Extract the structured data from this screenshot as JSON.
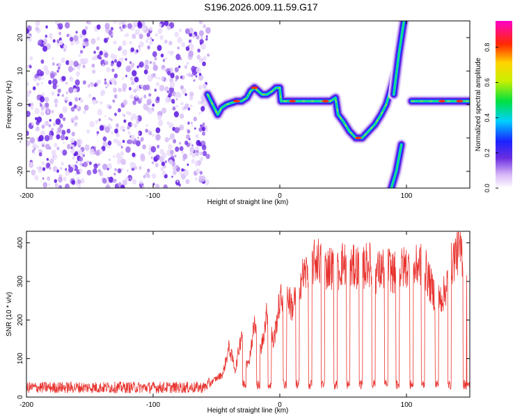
{
  "title": "S196.2026.009.11.59.G17",
  "colors": {
    "snr_line": "#e8322e",
    "frame": "#000000"
  },
  "chart_data": [
    {
      "type": "heatmap",
      "title": "S196.2026.009.11.59.G17",
      "xlabel": "Height of straight line (km)",
      "ylabel": "Frequency (Hz)",
      "xlim": [
        -200,
        150
      ],
      "ylim": [
        -25,
        25
      ],
      "xticks": [
        -200,
        -100,
        0,
        100
      ],
      "yticks": [
        -20,
        -10,
        0,
        10,
        20
      ],
      "colorbar": {
        "label": "Normalized spectral amplitude",
        "range": [
          0,
          0.95
        ],
        "ticks": [
          "0.0",
          "0.2",
          "0.4",
          "0.6",
          "0.8"
        ],
        "tick_values": [
          0.0,
          0.2,
          0.4,
          0.6,
          0.8
        ]
      },
      "noise_region_x": [
        -200,
        -56
      ],
      "ridge": [
        [
          -57,
          3
        ],
        [
          -53,
          0
        ],
        [
          -49,
          -3
        ],
        [
          -46,
          -1
        ],
        [
          -42,
          0
        ],
        [
          -38,
          0.5
        ],
        [
          -34,
          1
        ],
        [
          -30,
          1
        ],
        [
          -26,
          2
        ],
        [
          -23,
          4
        ],
        [
          -20,
          5
        ],
        [
          -17,
          4
        ],
        [
          -14,
          3
        ],
        [
          -10,
          3
        ],
        [
          -6,
          4
        ],
        [
          -3,
          5
        ],
        [
          0,
          5
        ],
        [
          1,
          1
        ],
        [
          10,
          1
        ],
        [
          20,
          1
        ],
        [
          30,
          1
        ],
        [
          40,
          1
        ],
        [
          44,
          2
        ],
        [
          46,
          -3
        ],
        [
          50,
          -5
        ],
        [
          55,
          -8
        ],
        [
          60,
          -10
        ],
        [
          65,
          -10
        ],
        [
          70,
          -8
        ],
        [
          75,
          -6
        ],
        [
          80,
          -3
        ],
        [
          84,
          0
        ],
        [
          88,
          5
        ],
        [
          91,
          9
        ]
      ],
      "steep_segment_upper": [
        [
          90,
          3
        ],
        [
          94,
          15
        ],
        [
          98,
          25
        ]
      ],
      "steep_segment_lower": [
        [
          88,
          -25
        ],
        [
          92,
          -20
        ],
        [
          96,
          -12
        ]
      ],
      "tail_ridge": [
        [
          104,
          1
        ],
        [
          115,
          1
        ],
        [
          125,
          1
        ],
        [
          135,
          1
        ],
        [
          150,
          1
        ]
      ]
    },
    {
      "type": "line",
      "xlabel": "Height of straight line (km)",
      "ylabel": "SNR (10 * v/v)",
      "xlim": [
        -200,
        150
      ],
      "ylim": [
        0,
        430
      ],
      "xticks": [
        -200,
        -100,
        0,
        100
      ],
      "yticks": [
        0,
        100,
        200,
        300,
        400
      ],
      "x": [
        -200,
        -180,
        -160,
        -140,
        -120,
        -100,
        -80,
        -60,
        -45,
        -40,
        -35,
        -30,
        -25,
        -20,
        -15,
        -10,
        -5,
        0,
        5,
        10,
        15,
        20,
        25,
        30,
        35,
        40,
        45,
        50,
        55,
        60,
        65,
        70,
        75,
        80,
        85,
        90,
        95,
        100,
        105,
        110,
        115,
        120,
        125,
        130,
        135,
        140,
        145,
        150
      ],
      "values": [
        25,
        25,
        25,
        25,
        25,
        25,
        25,
        25,
        60,
        130,
        70,
        170,
        80,
        190,
        120,
        220,
        140,
        250,
        270,
        230,
        300,
        320,
        340,
        360,
        330,
        340,
        320,
        350,
        330,
        340,
        330,
        350,
        320,
        330,
        340,
        320,
        330,
        340,
        320,
        350,
        330,
        280,
        250,
        270,
        340,
        380,
        370,
        340
      ],
      "dropouts_x": [
        -28,
        -17,
        -8,
        4,
        14,
        24,
        34,
        44,
        54,
        64,
        74,
        84,
        93,
        104,
        113,
        124,
        134,
        146,
        149
      ]
    }
  ]
}
